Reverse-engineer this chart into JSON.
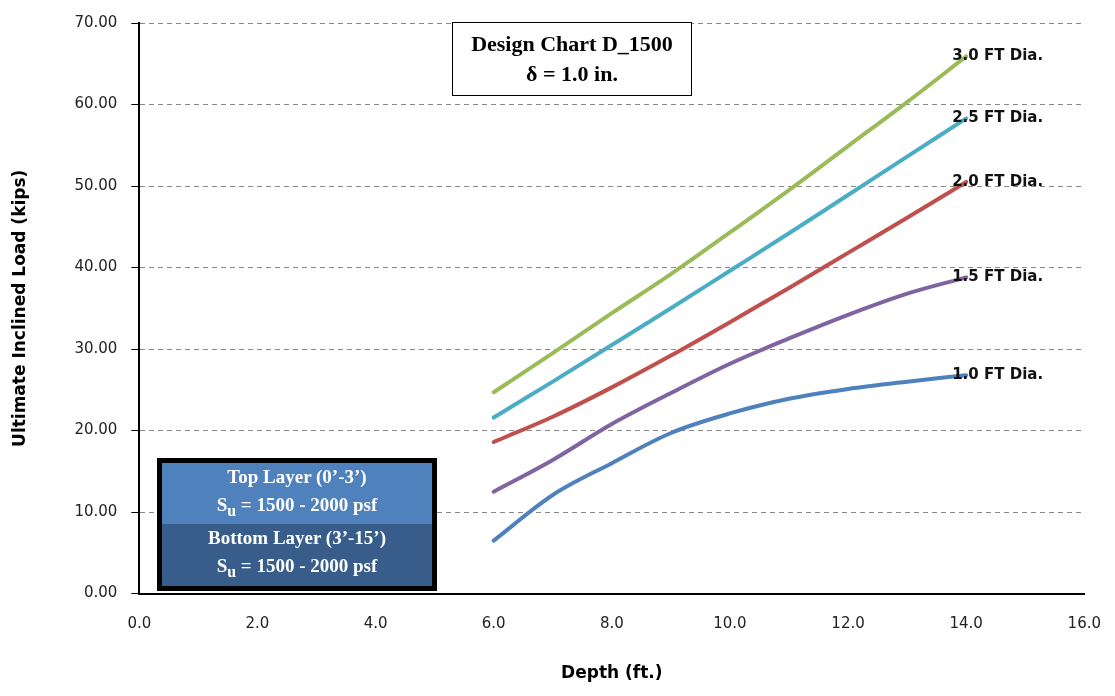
{
  "chart_data": {
    "type": "line",
    "title": "Design Chart D_1500",
    "subtitle": "δ = 1.0 in.",
    "xlabel": "Depth (ft.)",
    "ylabel": "Ultimate Inclined Load (kips)",
    "x": [
      6,
      7,
      8,
      9,
      10,
      11,
      12,
      13,
      14
    ],
    "series": [
      {
        "name": "1.0 FT Dia.",
        "color": "#4f81bd",
        "values": [
          6.5,
          12.1,
          16.0,
          19.7,
          22.1,
          23.9,
          25.1,
          26.0,
          26.8
        ]
      },
      {
        "name": "1.5 FT Dia.",
        "color": "#8064a2",
        "values": [
          12.5,
          16.4,
          20.8,
          24.6,
          28.2,
          31.3,
          34.2,
          36.8,
          38.8
        ]
      },
      {
        "name": "2.0 FT Dia.",
        "color": "#c0504d",
        "values": [
          18.6,
          21.7,
          25.3,
          29.2,
          33.3,
          37.5,
          41.8,
          46.1,
          50.5
        ]
      },
      {
        "name": "2.5 FT Dia.",
        "color": "#4bacc6",
        "values": [
          21.6,
          26.0,
          30.5,
          35.0,
          39.6,
          44.2,
          48.9,
          53.6,
          58.3
        ]
      },
      {
        "name": "3.0 FT Dia.",
        "color": "#9bbb59",
        "values": [
          24.7,
          29.5,
          34.4,
          39.2,
          44.3,
          49.5,
          54.9,
          60.3,
          65.9
        ]
      }
    ],
    "xlim": [
      0,
      16
    ],
    "xticks": [
      {
        "value": 0,
        "label": "0.0"
      },
      {
        "value": 2,
        "label": "2.0"
      },
      {
        "value": 4,
        "label": "4.0"
      },
      {
        "value": 6,
        "label": "6.0"
      },
      {
        "value": 8,
        "label": "8.0"
      },
      {
        "value": 10,
        "label": "10.0"
      },
      {
        "value": 12,
        "label": "12.0"
      },
      {
        "value": 14,
        "label": "14.0"
      },
      {
        "value": 16,
        "label": "16.0"
      }
    ],
    "ylim": [
      0,
      70
    ],
    "yticks": [
      {
        "value": 0,
        "label": "0.00"
      },
      {
        "value": 10,
        "label": "10.00"
      },
      {
        "value": 20,
        "label": "20.00"
      },
      {
        "value": 30,
        "label": "30.00"
      },
      {
        "value": 40,
        "label": "40.00"
      },
      {
        "value": 50,
        "label": "50.00"
      },
      {
        "value": 60,
        "label": "60.00"
      },
      {
        "value": 70,
        "label": "70.00"
      }
    ],
    "grid": "y",
    "legend": false,
    "marker": "none",
    "line_style": "solid",
    "annotations": [
      "Top Layer (0’-3’)\nS$_{u}$ = 1500 - 2000 psf",
      "Bottom Layer (3’-15’)\nS$_{u}$ = 1500 - 2000 psf"
    ]
  }
}
